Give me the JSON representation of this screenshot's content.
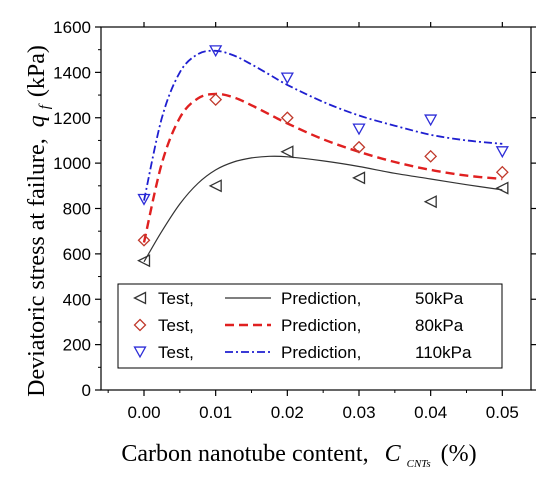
{
  "chart_data": {
    "type": "line",
    "xlabel": {
      "text": "Carbon nanotube content,",
      "symbol": "C",
      "symbol_sub": "CNTs",
      "unit": "(%)"
    },
    "ylabel": {
      "text": "Deviatoric stress at failure,",
      "symbol": "q",
      "symbol_sub": "f",
      "unit": "(kPa)"
    },
    "xlim": [
      -0.006,
      0.054
    ],
    "ylim": [
      0,
      1600
    ],
    "x_ticks": [
      0.0,
      0.01,
      0.02,
      0.03,
      0.04,
      0.05
    ],
    "x_tick_labels": [
      "0.00",
      "0.01",
      "0.02",
      "0.03",
      "0.04",
      "0.05"
    ],
    "y_ticks": [
      0,
      200,
      400,
      600,
      800,
      1000,
      1200,
      1400,
      1600
    ],
    "y_tick_labels": [
      "0",
      "200",
      "400",
      "600",
      "800",
      "1000",
      "1200",
      "1400",
      "1600"
    ],
    "legend_position": "bottom-center",
    "series": [
      {
        "confining_pressure": "50kPa",
        "test_label": "Test,",
        "prediction_label": "Prediction,",
        "color": "#333333",
        "marker": "triangle-left",
        "line_style": "solid",
        "test_x": [
          0.0,
          0.01,
          0.02,
          0.03,
          0.04,
          0.05
        ],
        "test_y": [
          570,
          900,
          1050,
          935,
          830,
          890
        ],
        "prediction_x": [
          0.0,
          0.0025,
          0.005,
          0.0075,
          0.01,
          0.0125,
          0.015,
          0.0175,
          0.02,
          0.025,
          0.03,
          0.035,
          0.04,
          0.045,
          0.05
        ],
        "prediction_y": [
          565,
          700,
          820,
          910,
          970,
          1005,
          1023,
          1030,
          1028,
          1010,
          985,
          955,
          930,
          905,
          882
        ]
      },
      {
        "confining_pressure": "80kPa",
        "test_label": "Test,",
        "prediction_label": "Prediction,",
        "color": "#e02020",
        "marker_color": "#c0392b",
        "marker": "diamond",
        "line_style": "dash",
        "test_x": [
          0.0,
          0.01,
          0.02,
          0.03,
          0.04,
          0.05
        ],
        "test_y": [
          660,
          1280,
          1200,
          1070,
          1030,
          960
        ],
        "prediction_x": [
          0.0,
          0.0025,
          0.005,
          0.0075,
          0.01,
          0.0125,
          0.015,
          0.0175,
          0.02,
          0.025,
          0.03,
          0.035,
          0.04,
          0.045,
          0.05
        ],
        "prediction_y": [
          650,
          1000,
          1200,
          1285,
          1305,
          1290,
          1255,
          1215,
          1175,
          1105,
          1050,
          1005,
          970,
          945,
          930
        ]
      },
      {
        "confining_pressure": "110kPa",
        "test_label": "Test,",
        "prediction_label": "Prediction,",
        "color": "#1f1fd0",
        "marker_color": "#2d2dd8",
        "marker": "triangle-down",
        "line_style": "dashdot",
        "test_x": [
          0.0,
          0.01,
          0.02,
          0.03,
          0.04,
          0.05
        ],
        "test_y": [
          840,
          1495,
          1375,
          1150,
          1190,
          1050
        ],
        "prediction_x": [
          0.0,
          0.0025,
          0.005,
          0.0075,
          0.01,
          0.0125,
          0.015,
          0.0175,
          0.02,
          0.025,
          0.03,
          0.035,
          0.04,
          0.045,
          0.05
        ],
        "prediction_y": [
          835,
          1200,
          1400,
          1480,
          1495,
          1475,
          1435,
          1390,
          1345,
          1270,
          1210,
          1165,
          1125,
          1100,
          1085
        ]
      }
    ]
  }
}
